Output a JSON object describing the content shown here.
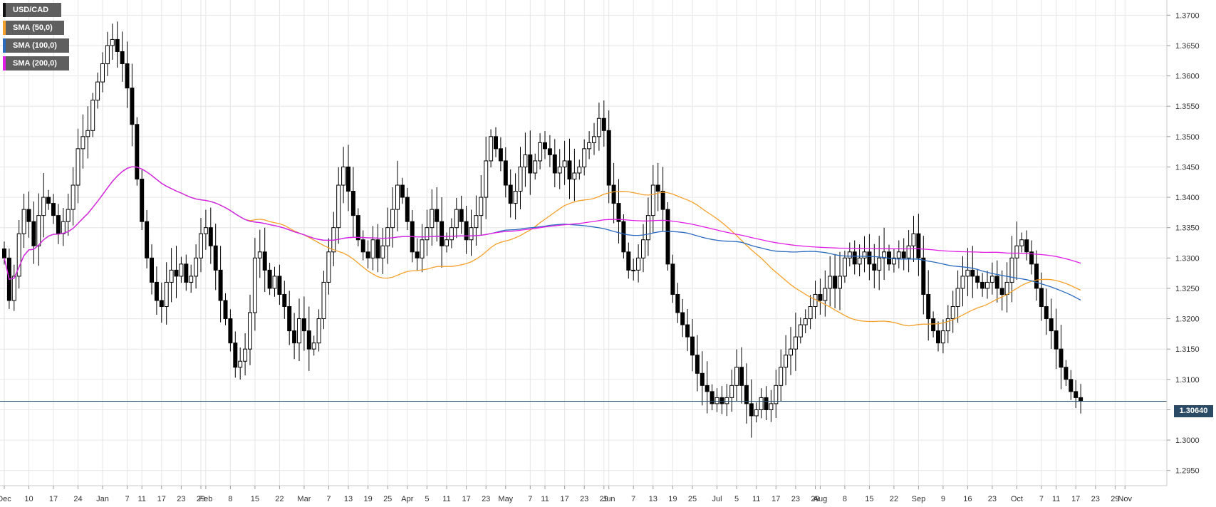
{
  "legend": {
    "symbol": "USD/CAD",
    "sma50": "SMA (50,0)",
    "sma100": "SMA (100,0)",
    "sma200": "SMA (200,0)"
  },
  "colors": {
    "symbol": "#111111",
    "sma50": "#f5a02a",
    "sma100": "#2a6bbf",
    "sma200": "#e21ee6",
    "current_line": "#2b4a66",
    "grid": "#e6e6e6"
  },
  "current_price_label": "1.30640",
  "chart_data": {
    "type": "candlestick",
    "symbol": "USD/CAD",
    "timeframe": "daily",
    "current_price": 1.3064,
    "ylim": [
      1.2925,
      1.3725
    ],
    "y_ticks": [
      "1.2950",
      "1.3000",
      "1.3050",
      "1.3100",
      "1.3150",
      "1.3200",
      "1.3250",
      "1.3300",
      "1.3350",
      "1.3400",
      "1.3450",
      "1.3500",
      "1.3550",
      "1.3600",
      "1.3650",
      "1.3700"
    ],
    "x_ticks": [
      "Dec",
      "10",
      "17",
      "24",
      "Jan",
      "7",
      "11",
      "17",
      "23",
      "29",
      "Feb",
      "8",
      "15",
      "22",
      "Mar",
      "7",
      "13",
      "19",
      "25",
      "Apr",
      "5",
      "11",
      "17",
      "23",
      "May",
      "7",
      "11",
      "17",
      "23",
      "29",
      "Jun",
      "7",
      "13",
      "19",
      "25",
      "Jul",
      "5",
      "11",
      "17",
      "23",
      "29",
      "Aug",
      "8",
      "15",
      "22",
      "Sep",
      "9",
      "16",
      "23",
      "Oct",
      "7",
      "11",
      "17",
      "23",
      "29",
      "Nov"
    ],
    "x_tick_index": [
      0,
      5,
      10,
      15,
      20,
      25,
      28,
      32,
      36,
      40,
      41,
      46,
      51,
      56,
      61,
      66,
      70,
      74,
      78,
      82,
      86,
      90,
      94,
      98,
      102,
      107,
      110,
      114,
      118,
      122,
      123,
      128,
      132,
      136,
      140,
      145,
      149,
      153,
      157,
      161,
      165,
      166,
      171,
      176,
      181,
      186,
      191,
      196,
      201,
      206,
      211,
      214,
      218,
      222,
      226,
      228
    ],
    "closes": [
      1.33,
      1.323,
      1.327,
      1.334,
      1.338,
      1.336,
      1.332,
      1.337,
      1.34,
      1.339,
      1.337,
      1.334,
      1.336,
      1.338,
      1.342,
      1.348,
      1.35,
      1.351,
      1.356,
      1.359,
      1.362,
      1.365,
      1.366,
      1.364,
      1.362,
      1.358,
      1.352,
      1.343,
      1.336,
      1.33,
      1.326,
      1.323,
      1.322,
      1.326,
      1.328,
      1.327,
      1.329,
      1.326,
      1.327,
      1.33,
      1.334,
      1.335,
      1.332,
      1.328,
      1.323,
      1.32,
      1.316,
      1.312,
      1.313,
      1.315,
      1.321,
      1.33,
      1.331,
      1.328,
      1.325,
      1.327,
      1.324,
      1.322,
      1.318,
      1.316,
      1.32,
      1.318,
      1.315,
      1.316,
      1.32,
      1.326,
      1.331,
      1.335,
      1.342,
      1.345,
      1.341,
      1.337,
      1.333,
      1.331,
      1.33,
      1.333,
      1.33,
      1.332,
      1.335,
      1.338,
      1.342,
      1.34,
      1.336,
      1.331,
      1.33,
      1.333,
      1.335,
      1.338,
      1.336,
      1.332,
      1.333,
      1.335,
      1.338,
      1.336,
      1.333,
      1.335,
      1.337,
      1.34,
      1.346,
      1.35,
      1.348,
      1.346,
      1.342,
      1.339,
      1.341,
      1.345,
      1.347,
      1.344,
      1.346,
      1.349,
      1.348,
      1.347,
      1.344,
      1.345,
      1.346,
      1.343,
      1.344,
      1.345,
      1.348,
      1.349,
      1.35,
      1.353,
      1.351,
      1.342,
      1.339,
      1.336,
      1.331,
      1.328,
      1.328,
      1.33,
      1.333,
      1.337,
      1.342,
      1.341,
      1.338,
      1.329,
      1.324,
      1.321,
      1.319,
      1.317,
      1.314,
      1.311,
      1.309,
      1.308,
      1.306,
      1.307,
      1.306,
      1.307,
      1.309,
      1.312,
      1.309,
      1.306,
      1.304,
      1.305,
      1.307,
      1.305,
      1.306,
      1.309,
      1.312,
      1.314,
      1.315,
      1.317,
      1.319,
      1.32,
      1.322,
      1.324,
      1.323,
      1.325,
      1.327,
      1.325,
      1.327,
      1.33,
      1.331,
      1.329,
      1.33,
      1.331,
      1.329,
      1.328,
      1.33,
      1.331,
      1.329,
      1.33,
      1.331,
      1.33,
      1.332,
      1.334,
      1.33,
      1.324,
      1.32,
      1.318,
      1.316,
      1.318,
      1.32,
      1.322,
      1.325,
      1.327,
      1.328,
      1.327,
      1.326,
      1.325,
      1.326,
      1.327,
      1.325,
      1.324,
      1.326,
      1.33,
      1.332,
      1.333,
      1.331,
      1.329,
      1.325,
      1.322,
      1.32,
      1.318,
      1.315,
      1.312,
      1.31,
      1.308,
      1.307,
      1.3064
    ]
  }
}
